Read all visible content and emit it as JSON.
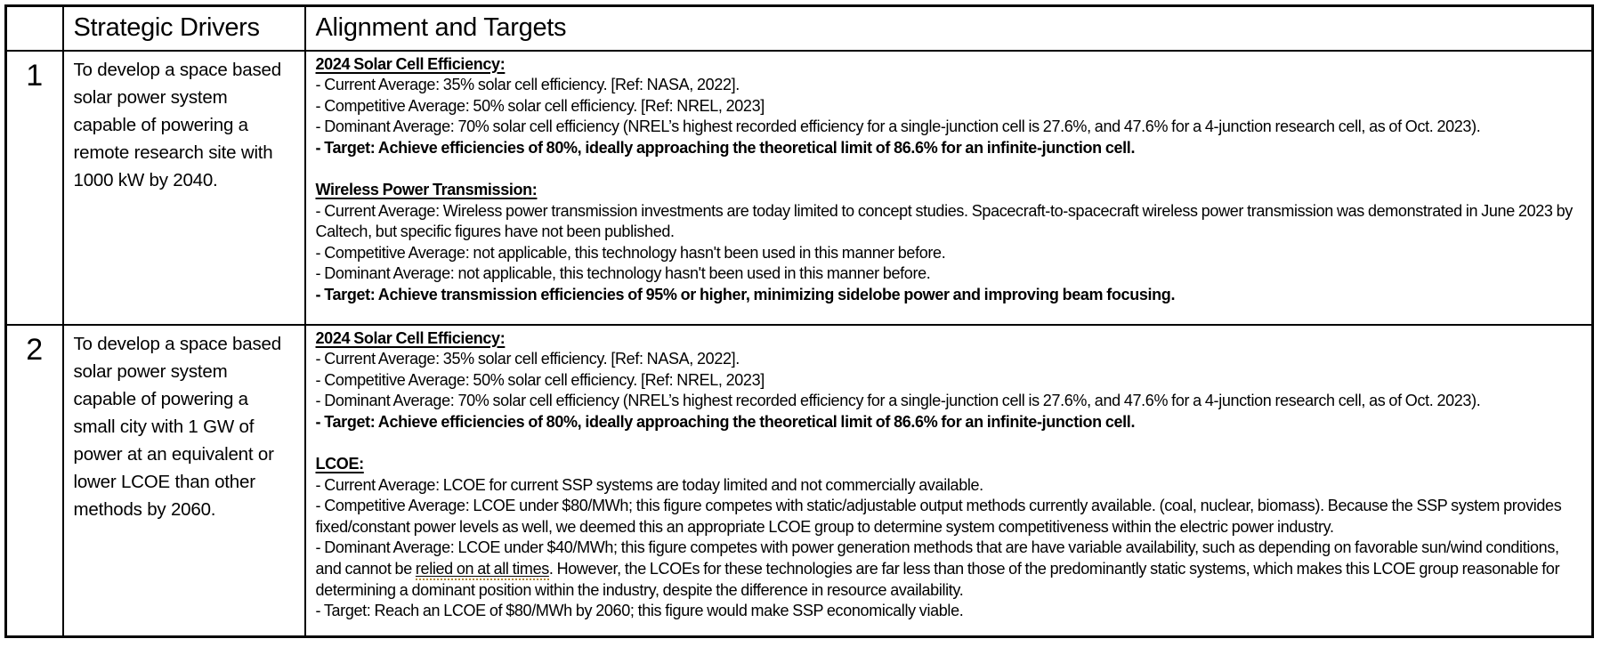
{
  "colors": {
    "background": "#ffffff",
    "border": "#000000",
    "text": "#000000",
    "grammar_underline": "#b3892e"
  },
  "table": {
    "headers": [
      "",
      "Strategic Drivers",
      "Alignment and Targets"
    ],
    "rows": [
      {
        "num": "1",
        "driver": "To develop a space based solar power system capable of powering a remote research site with 1000 kW by 2040.",
        "sections": [
          {
            "heading": "2024 Solar Cell Efficiency:",
            "items": [
              {
                "bold": false,
                "parts": [
                  {
                    "text": "- Current Average: 35% solar cell efficiency. [Ref: NASA, 2022]."
                  }
                ]
              },
              {
                "bold": false,
                "parts": [
                  {
                    "text": "- Competitive Average: 50% solar cell efficiency. [Ref: NREL, 2023]"
                  }
                ]
              },
              {
                "bold": false,
                "parts": [
                  {
                    "text": "- Dominant Average: 70% solar cell efficiency (NREL’s highest recorded efficiency for a single-junction cell is 27.6%, and 47.6% for a 4-junction research cell, as of Oct. 2023)."
                  }
                ]
              },
              {
                "bold": true,
                "parts": [
                  {
                    "text": "- Target: Achieve efficiencies of 80%, ideally approaching the theoretical limit of 86.6% for an infinite-junction cell."
                  }
                ]
              }
            ]
          },
          {
            "heading": "Wireless Power Transmission:",
            "items": [
              {
                "bold": false,
                "parts": [
                  {
                    "text": "- Current Average: Wireless power transmission investments are today limited to concept studies. Spacecraft-to-spacecraft wireless power transmission was demonstrated in June 2023 by Caltech, but specific figures have not been published."
                  }
                ]
              },
              {
                "bold": false,
                "parts": [
                  {
                    "text": "- Competitive Average: not applicable, this technology hasn't been used in this manner before."
                  }
                ]
              },
              {
                "bold": false,
                "parts": [
                  {
                    "text": "- Dominant Average: not applicable, this technology hasn't been used in this manner before."
                  }
                ]
              },
              {
                "bold": true,
                "parts": [
                  {
                    "text": "- Target: Achieve transmission efficiencies of 95% or higher, minimizing sidelobe power and improving beam focusing."
                  }
                ]
              }
            ]
          }
        ]
      },
      {
        "num": "2",
        "driver": "To develop a space based solar power system capable of powering a small city with 1 GW of power at an equivalent or lower LCOE than other methods by 2060.",
        "sections": [
          {
            "heading": "2024 Solar Cell Efficiency:",
            "items": [
              {
                "bold": false,
                "parts": [
                  {
                    "text": "- Current Average: 35% solar cell efficiency. [Ref: NASA, 2022]."
                  }
                ]
              },
              {
                "bold": false,
                "parts": [
                  {
                    "text": "- Competitive Average: 50% solar cell efficiency. [Ref: NREL, 2023]"
                  }
                ]
              },
              {
                "bold": false,
                "parts": [
                  {
                    "text": "- Dominant Average: 70% solar cell efficiency (NREL’s highest recorded efficiency for a single-junction cell is 27.6%, and 47.6% for a 4-junction research cell, as of Oct. 2023)."
                  }
                ]
              },
              {
                "bold": true,
                "parts": [
                  {
                    "text": "- Target: Achieve efficiencies of 80%, ideally approaching the theoretical limit of 86.6% for an infinite-junction cell."
                  }
                ]
              }
            ]
          },
          {
            "heading": "LCOE:",
            "items": [
              {
                "bold": false,
                "parts": [
                  {
                    "text": "- Current Average: LCOE for current SSP systems are today limited and not commercially available."
                  }
                ]
              },
              {
                "bold": false,
                "parts": [
                  {
                    "text": "- Competitive Average: LCOE under $80/MWh; this figure competes with static/adjustable output methods currently available. (coal, nuclear, biomass). Because the SSP system provides fixed/constant power levels as well, we deemed this an appropriate LCOE group to determine system competitiveness within the electric power industry."
                  }
                ]
              },
              {
                "bold": false,
                "parts": [
                  {
                    "text": "- Dominant Average: LCOE under $40/MWh; this figure competes with power generation methods that are have variable availability, such as depending on favorable sun/wind conditions, and cannot be "
                  },
                  {
                    "text": "relied on at all times",
                    "grammar": true
                  },
                  {
                    "text": ". However, the LCOEs for these technologies are far less than those of the predominantly static systems, which makes this LCOE group reasonable for determining a dominant position within the industry, despite the difference in resource availability."
                  }
                ]
              },
              {
                "bold": false,
                "parts": [
                  {
                    "text": "- Target: Reach an LCOE of $80/MWh by 2060; this figure would make SSP economically viable."
                  }
                ]
              }
            ]
          }
        ]
      }
    ]
  }
}
